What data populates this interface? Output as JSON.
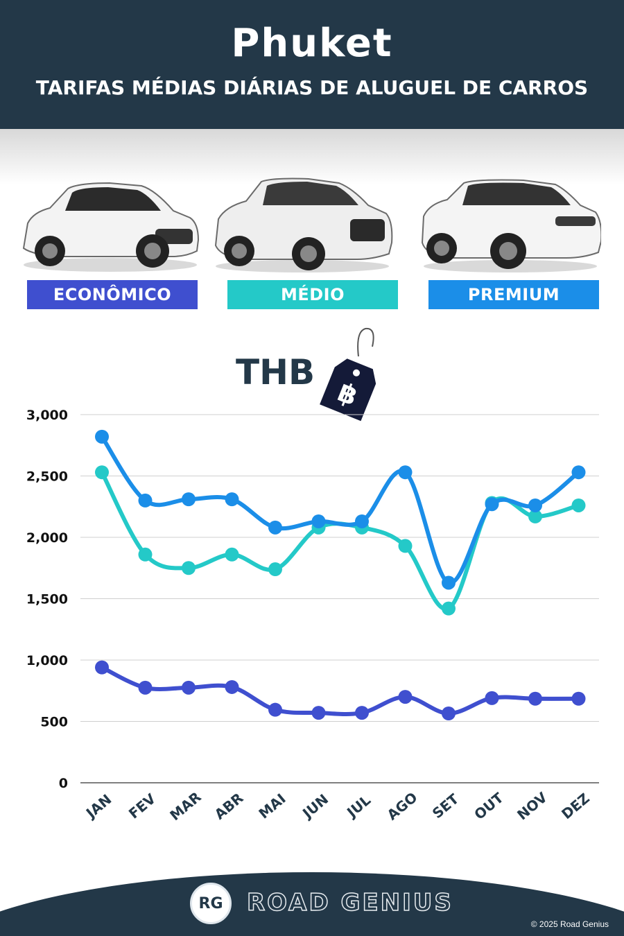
{
  "header": {
    "title": "Phuket",
    "subtitle": "TARIFAS MÉDIAS DIÁRIAS DE ALUGUEL DE CARROS"
  },
  "categories": [
    {
      "label": "ECONÔMICO",
      "color": "#3f4fcf"
    },
    {
      "label": "MÉDIO",
      "color": "#24c9c8"
    },
    {
      "label": "PREMIUM",
      "color": "#1b8ee8"
    }
  ],
  "currency": {
    "label": "THB",
    "symbol": "฿"
  },
  "chart_data": {
    "type": "line",
    "categories": [
      "JAN",
      "FEV",
      "MAR",
      "ABR",
      "MAI",
      "JUN",
      "JUL",
      "AGO",
      "SET",
      "OUT",
      "NOV",
      "DEZ"
    ],
    "yticks": [
      "0",
      "500",
      "1,000",
      "1,500",
      "2,000",
      "2,500",
      "3,000"
    ],
    "ylim": [
      0,
      3000
    ],
    "grid": true,
    "series": [
      {
        "name": "ECONÔMICO",
        "color": "#3f4fcf",
        "values": [
          940,
          775,
          775,
          780,
          595,
          570,
          570,
          700,
          565,
          690,
          685,
          685
        ]
      },
      {
        "name": "MÉDIO",
        "color": "#24c9c8",
        "values": [
          2530,
          1860,
          1750,
          1860,
          1740,
          2080,
          2080,
          1930,
          1420,
          2280,
          2170,
          2260
        ]
      },
      {
        "name": "PREMIUM",
        "color": "#1b8ee8",
        "values": [
          2820,
          2300,
          2310,
          2310,
          2080,
          2130,
          2130,
          2530,
          1630,
          2270,
          2260,
          2530
        ]
      }
    ]
  },
  "footer": {
    "logo": "RG",
    "brand": "ROAD GENIUS",
    "copyright": "© 2025 Road Genius"
  }
}
